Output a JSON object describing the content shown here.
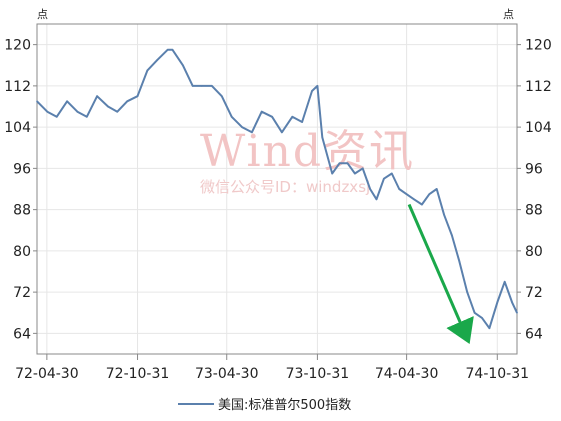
{
  "chart_data": {
    "type": "line",
    "title": "",
    "xlabel": "",
    "ylabel": "",
    "unit_left": "点",
    "unit_right": "点",
    "ylim": [
      60,
      124
    ],
    "yticks": [
      64,
      72,
      80,
      88,
      96,
      104,
      112,
      120
    ],
    "yticks_labels": [
      "64",
      "72",
      "80",
      "88",
      "96",
      "104",
      "112",
      "120"
    ],
    "xticks": [
      "72-04-30",
      "72-10-31",
      "73-04-30",
      "73-10-31",
      "74-04-30",
      "74-10-31"
    ],
    "xrange": [
      "1972-04-10",
      "1974-12-10"
    ],
    "grid": true,
    "legend_position": "bottom-center",
    "watermark": {
      "main": "Wind资讯",
      "sub": "微信公众号ID：windzxsj"
    },
    "series": [
      {
        "name": "美国:标准普尔500指数",
        "color": "#5b80ad",
        "x": [
          "1972-04-10",
          "1972-05-01",
          "1972-05-20",
          "1972-06-10",
          "1972-07-01",
          "1972-07-20",
          "1972-08-10",
          "1972-09-01",
          "1972-09-20",
          "1972-10-10",
          "1972-10-31",
          "1972-11-20",
          "1972-12-10",
          "1972-12-31",
          "1973-01-10",
          "1973-01-31",
          "1973-02-20",
          "1973-03-10",
          "1973-03-31",
          "1973-04-20",
          "1973-05-10",
          "1973-05-31",
          "1973-06-20",
          "1973-07-10",
          "1973-07-31",
          "1973-08-20",
          "1973-09-10",
          "1973-09-30",
          "1973-10-20",
          "1973-10-31",
          "1973-11-10",
          "1973-11-30",
          "1973-12-15",
          "1973-12-31",
          "1974-01-15",
          "1974-01-31",
          "1974-02-15",
          "1974-02-28",
          "1974-03-15",
          "1974-03-31",
          "1974-04-15",
          "1974-04-30",
          "1974-05-15",
          "1974-05-31",
          "1974-06-15",
          "1974-06-30",
          "1974-07-15",
          "1974-07-31",
          "1974-08-15",
          "1974-08-31",
          "1974-09-15",
          "1974-09-30",
          "1974-10-15",
          "1974-10-31",
          "1974-11-15",
          "1974-11-30",
          "1974-12-10"
        ],
        "values": [
          109,
          107,
          106,
          109,
          107,
          106,
          110,
          108,
          107,
          109,
          110,
          115,
          117,
          119,
          119,
          116,
          112,
          112,
          112,
          110,
          106,
          104,
          103,
          107,
          106,
          103,
          106,
          105,
          111,
          112,
          102,
          95,
          97,
          97,
          95,
          96,
          92,
          90,
          94,
          95,
          92,
          91,
          90,
          89,
          91,
          92,
          87,
          83,
          78,
          72,
          68,
          67,
          65,
          70,
          74,
          70,
          68
        ]
      }
    ],
    "annotations": [
      {
        "type": "arrow",
        "color": "#1aa84a",
        "from": {
          "x": "1974-05-05",
          "y": 89
        },
        "to": {
          "x": "1974-08-31",
          "y": 63
        }
      }
    ]
  }
}
